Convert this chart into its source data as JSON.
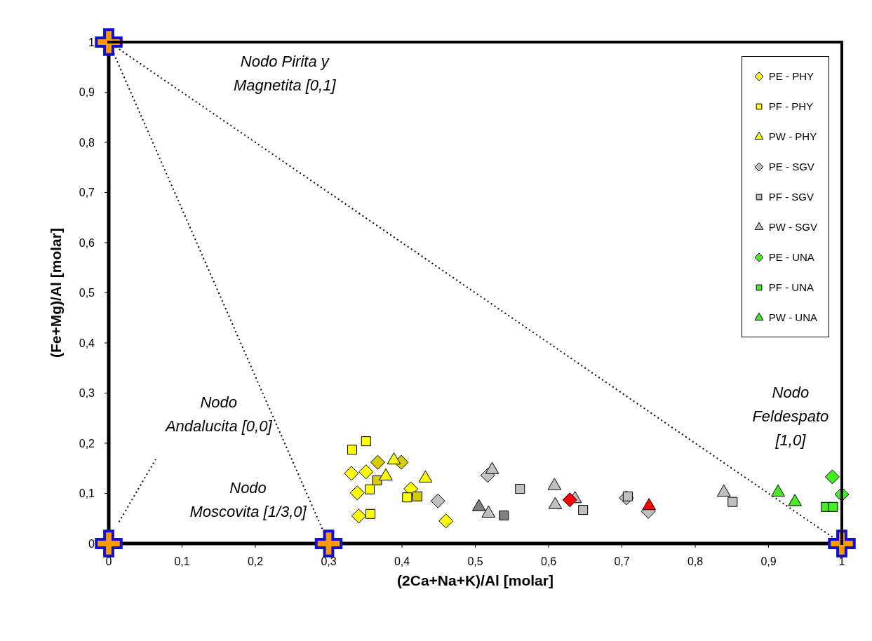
{
  "chart_data": {
    "type": "scatter",
    "xlabel": "(2Ca+Na+K)/Al  [molar]",
    "ylabel": "(Fe+Mg)/Al [molar]",
    "xlim": [
      0,
      1
    ],
    "ylim": [
      0,
      1
    ],
    "xticks": [
      {
        "value": 0,
        "label": "0"
      },
      {
        "value": 0.1,
        "label": "0,1"
      },
      {
        "value": 0.2,
        "label": "0,2"
      },
      {
        "value": 0.3,
        "label": "0,3"
      },
      {
        "value": 0.4,
        "label": "0,4"
      },
      {
        "value": 0.5,
        "label": "0,5"
      },
      {
        "value": 0.6,
        "label": "0,6"
      },
      {
        "value": 0.7,
        "label": "0,7"
      },
      {
        "value": 0.8,
        "label": "0,8"
      },
      {
        "value": 0.9,
        "label": "0,9"
      },
      {
        "value": 1,
        "label": "1"
      }
    ],
    "yticks": [
      {
        "value": 0,
        "label": "0"
      },
      {
        "value": 0.1,
        "label": "0,1"
      },
      {
        "value": 0.2,
        "label": "0,2"
      },
      {
        "value": 0.3,
        "label": "0,3"
      },
      {
        "value": 0.4,
        "label": "0,4"
      },
      {
        "value": 0.5,
        "label": "0,5"
      },
      {
        "value": 0.6,
        "label": "0,6"
      },
      {
        "value": 0.7,
        "label": "0,7"
      },
      {
        "value": 0.8,
        "label": "0,8"
      },
      {
        "value": 0.9,
        "label": "0,9"
      },
      {
        "value": 1,
        "label": "1"
      }
    ],
    "legend": "top right",
    "annotations": [
      "Nodo Pirita y\nMagnetita [0,1]",
      "Nodo\nAndalucita [0,0]",
      "Nodo\nMoscovita [1/3,0]",
      "Nodo\nFeldespato\n[1,0]"
    ],
    "series": [
      {
        "type": "line",
        "line_style": "dotted",
        "color": "#000000",
        "x": [
          0,
          0.3
        ],
        "values": [
          1,
          0
        ]
      },
      {
        "type": "line",
        "line_style": "dotted",
        "color": "#000000",
        "x": [
          0,
          1
        ],
        "values": [
          1,
          0
        ]
      },
      {
        "type": "line",
        "line_style": "dotted",
        "color": "#000000",
        "x": [
          0.014,
          0.064
        ],
        "values": [
          0.043,
          0.168
        ]
      },
      {
        "name": "PE - PHY",
        "marker": "diamond",
        "color": "#ffff00",
        "x": [
          0.331,
          0.351,
          0.339,
          0.341,
          0.412,
          0.46
        ],
        "values": [
          0.14,
          0.143,
          0.101,
          0.055,
          0.109,
          0.045
        ]
      },
      {
        "marker": "diamond",
        "color": "#d6cc00",
        "x": [
          0.367,
          0.399
        ],
        "values": [
          0.162,
          0.162
        ]
      },
      {
        "name": "PF - PHY",
        "marker": "square",
        "color": "#ffff00",
        "x": [
          0.332,
          0.351,
          0.356,
          0.357,
          0.407
        ],
        "values": [
          0.187,
          0.204,
          0.108,
          0.059,
          0.092
        ]
      },
      {
        "marker": "square",
        "color": "#d6cc00",
        "x": [
          0.366,
          0.421
        ],
        "values": [
          0.126,
          0.094
        ]
      },
      {
        "name": "PW - PHY",
        "marker": "triangle",
        "color": "#ffff00",
        "x": [
          0.389,
          0.378,
          0.432
        ],
        "values": [
          0.166,
          0.134,
          0.13
        ]
      },
      {
        "name": "PE - SGV",
        "marker": "diamond",
        "color": "#c0c0c0",
        "x": [
          0.449,
          0.517,
          0.706,
          0.736
        ],
        "values": [
          0.085,
          0.136,
          0.091,
          0.064
        ]
      },
      {
        "name": "PF - SGV",
        "marker": "square",
        "color": "#c0c0c0",
        "x": [
          0.561,
          0.647,
          0.708,
          0.851
        ],
        "values": [
          0.109,
          0.067,
          0.094,
          0.083
        ]
      },
      {
        "marker": "square",
        "color": "#808080",
        "x": [
          0.539
        ],
        "values": [
          0.056
        ]
      },
      {
        "name": "PW - SGV",
        "marker": "triangle",
        "color": "#c0c0c0",
        "x": [
          0.523,
          0.518,
          0.608,
          0.609,
          0.636,
          0.839
        ],
        "values": [
          0.147,
          0.06,
          0.115,
          0.077,
          0.089,
          0.102
        ]
      },
      {
        "marker": "triangle",
        "color": "#808080",
        "x": [
          0.505
        ],
        "values": [
          0.073
        ]
      },
      {
        "marker": "diamond",
        "color": "#ff0000",
        "x": [
          0.629
        ],
        "values": [
          0.087
        ]
      },
      {
        "marker": "triangle",
        "color": "#ff0000",
        "x": [
          0.737
        ],
        "values": [
          0.075
        ]
      },
      {
        "name": "PE - UNA",
        "marker": "diamond",
        "color": "#44ee22",
        "x": [
          0.987,
          1
        ],
        "values": [
          0.133,
          0.098
        ]
      },
      {
        "name": "PF - UNA",
        "marker": "square",
        "color": "#44ee22",
        "x": [
          0.978,
          0.988
        ],
        "values": [
          0.073,
          0.073
        ]
      },
      {
        "name": "PW - UNA",
        "marker": "triangle",
        "color": "#44ee22",
        "x": [
          0.913,
          0.936
        ],
        "values": [
          0.102,
          0.083
        ]
      },
      {
        "marker": "cross",
        "color": "#ff9900",
        "x": [
          0,
          0,
          0.3,
          1
        ],
        "values": [
          1,
          0,
          0,
          0
        ]
      }
    ]
  }
}
